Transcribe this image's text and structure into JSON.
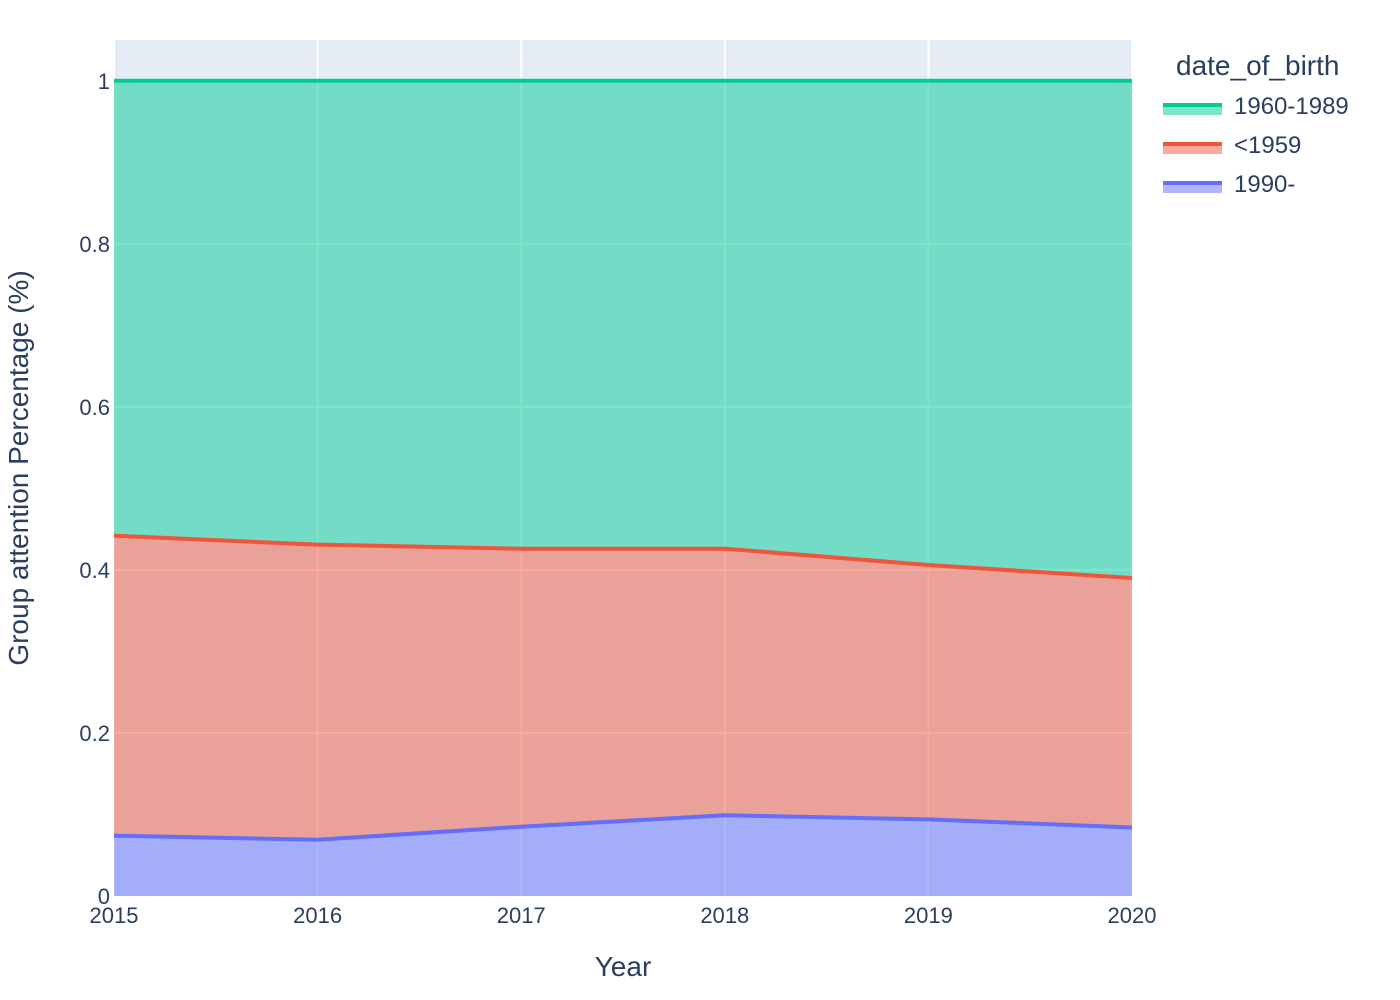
{
  "chart_data": {
    "type": "area",
    "stacked": true,
    "x": [
      2015,
      2016,
      2017,
      2018,
      2019,
      2020
    ],
    "xlabel": "Year",
    "ylabel": "Group attention Percentage (%)",
    "xlim": [
      2015,
      2020
    ],
    "ylim": [
      0,
      1.05
    ],
    "x_ticks": [
      "2015",
      "2016",
      "2017",
      "2018",
      "2019",
      "2020"
    ],
    "y_ticks": [
      {
        "value": 0,
        "label": "0"
      },
      {
        "value": 0.2,
        "label": "0.2"
      },
      {
        "value": 0.4,
        "label": "0.4"
      },
      {
        "value": 0.6,
        "label": "0.6"
      },
      {
        "value": 0.8,
        "label": "0.8"
      },
      {
        "value": 1,
        "label": "1"
      }
    ],
    "grid": true,
    "legend_title": "date_of_birth",
    "legend_placement": "top-right-outside",
    "series": [
      {
        "name": "1990-",
        "color": "#636efa",
        "values": [
          0.074,
          0.069,
          0.085,
          0.099,
          0.094,
          0.084
        ]
      },
      {
        "name": "<1959",
        "color": "#ef553b",
        "values": [
          0.368,
          0.362,
          0.341,
          0.327,
          0.312,
          0.306
        ]
      },
      {
        "name": "1960-1989",
        "color": "#00cc96",
        "values": [
          0.558,
          0.569,
          0.574,
          0.574,
          0.594,
          0.61
        ]
      }
    ],
    "legend_order": [
      "1960-1989",
      "<1959",
      "1990-"
    ]
  }
}
